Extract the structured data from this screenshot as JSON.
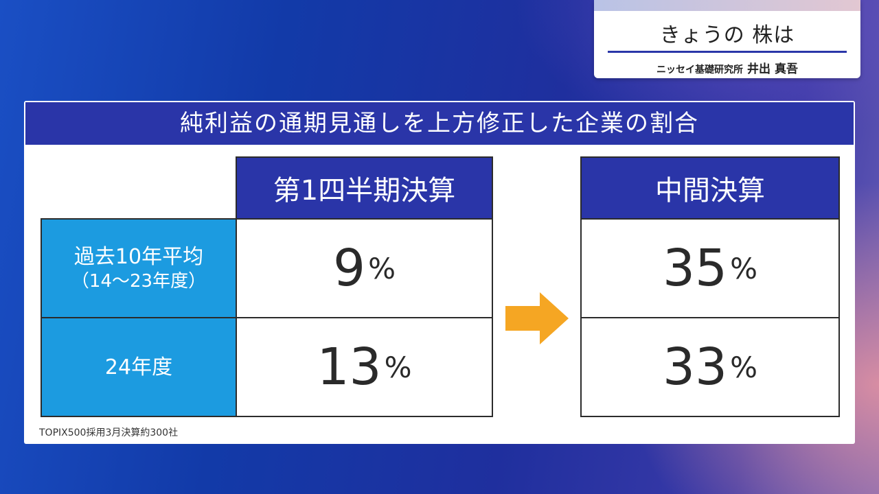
{
  "ticker": {
    "title": "きょうの 株は",
    "org": "ニッセイ基礎研究所",
    "person": "井出 真吾"
  },
  "card": {
    "title": "純利益の通期見通しを上方修正した企業の割合",
    "columns": [
      "第1四半期決算",
      "中間決算"
    ],
    "rows": [
      {
        "label_line1": "過去10年平均",
        "label_line2": "（14〜23年度）",
        "q1": "9",
        "interim": "35"
      },
      {
        "label_line1": "24年度",
        "label_line2": "",
        "q1": "13",
        "interim": "33"
      }
    ],
    "unit": "%",
    "note": "TOPIX500採用3月決算約300社"
  },
  "colors": {
    "header_blue": "#2a35a8",
    "row_blue": "#1c9be0",
    "arrow": "#f5a623"
  },
  "icons": {
    "arrow": "arrow-right-icon"
  }
}
